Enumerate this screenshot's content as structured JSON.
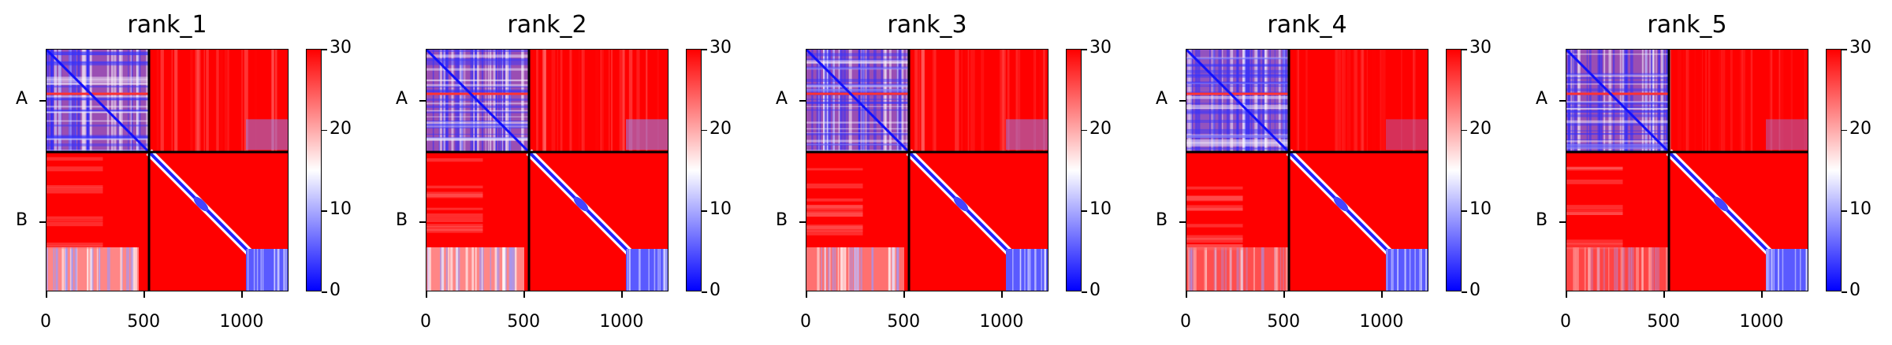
{
  "chart_data": [
    {
      "type": "heatmap",
      "title": "rank_1",
      "y_tick_labels": [
        "A",
        "B"
      ],
      "x_tick_labels": [
        "0",
        "500",
        "1000"
      ],
      "x_ticks": [
        0,
        500,
        1000
      ],
      "x_range": [
        0,
        1240
      ],
      "chain_boundary": 525,
      "colorbar": {
        "range": [
          0,
          30
        ],
        "ticks": [
          0,
          10,
          20,
          30
        ],
        "colors": [
          "#0000ff",
          "#ffffff",
          "#ff0000"
        ]
      },
      "bands": {
        "left_top": 0.7,
        "right_top": 0.3,
        "left_bottom": 0.6,
        "bottom_band_extent": 470
      }
    },
    {
      "type": "heatmap",
      "title": "rank_2",
      "y_tick_labels": [
        "A",
        "B"
      ],
      "x_tick_labels": [
        "0",
        "500",
        "1000"
      ],
      "x_ticks": [
        0,
        500,
        1000
      ],
      "x_range": [
        0,
        1240
      ],
      "chain_boundary": 525,
      "colorbar": {
        "range": [
          0,
          30
        ],
        "ticks": [
          0,
          10,
          20,
          30
        ],
        "colors": [
          "#0000ff",
          "#ffffff",
          "#ff0000"
        ]
      },
      "bands": {
        "left_top": 0.7,
        "right_top": 0.35,
        "left_bottom": 0.6,
        "bottom_band_extent": 500
      }
    },
    {
      "type": "heatmap",
      "title": "rank_3",
      "y_tick_labels": [
        "A",
        "B"
      ],
      "x_tick_labels": [
        "0",
        "500",
        "1000"
      ],
      "x_ticks": [
        0,
        500,
        1000
      ],
      "x_range": [
        0,
        1240
      ],
      "chain_boundary": 525,
      "colorbar": {
        "range": [
          0,
          30
        ],
        "ticks": [
          0,
          10,
          20,
          30
        ],
        "colors": [
          "#0000ff",
          "#ffffff",
          "#ff0000"
        ]
      },
      "bands": {
        "left_top": 0.7,
        "right_top": 0.3,
        "left_bottom": 0.5,
        "bottom_band_extent": 500
      }
    },
    {
      "type": "heatmap",
      "title": "rank_4",
      "y_tick_labels": [
        "A",
        "B"
      ],
      "x_tick_labels": [
        "0",
        "500",
        "1000"
      ],
      "x_ticks": [
        0,
        500,
        1000
      ],
      "x_range": [
        0,
        1240
      ],
      "chain_boundary": 525,
      "colorbar": {
        "range": [
          0,
          30
        ],
        "ticks": [
          0,
          10,
          20,
          30
        ],
        "colors": [
          "#0000ff",
          "#ffffff",
          "#ff0000"
        ]
      },
      "bands": {
        "left_top": 0.75,
        "right_top": 0.15,
        "left_bottom": 0.35,
        "bottom_band_extent": 520
      }
    },
    {
      "type": "heatmap",
      "title": "rank_5",
      "y_tick_labels": [
        "A",
        "B"
      ],
      "x_tick_labels": [
        "0",
        "500",
        "1000"
      ],
      "x_ticks": [
        0,
        500,
        1000
      ],
      "x_range": [
        0,
        1240
      ],
      "chain_boundary": 525,
      "colorbar": {
        "range": [
          0,
          30
        ],
        "ticks": [
          0,
          10,
          20,
          30
        ],
        "colors": [
          "#0000ff",
          "#ffffff",
          "#ff0000"
        ]
      },
      "bands": {
        "left_top": 0.7,
        "right_top": 0.2,
        "left_bottom": 0.3,
        "bottom_band_extent": 520
      }
    }
  ]
}
